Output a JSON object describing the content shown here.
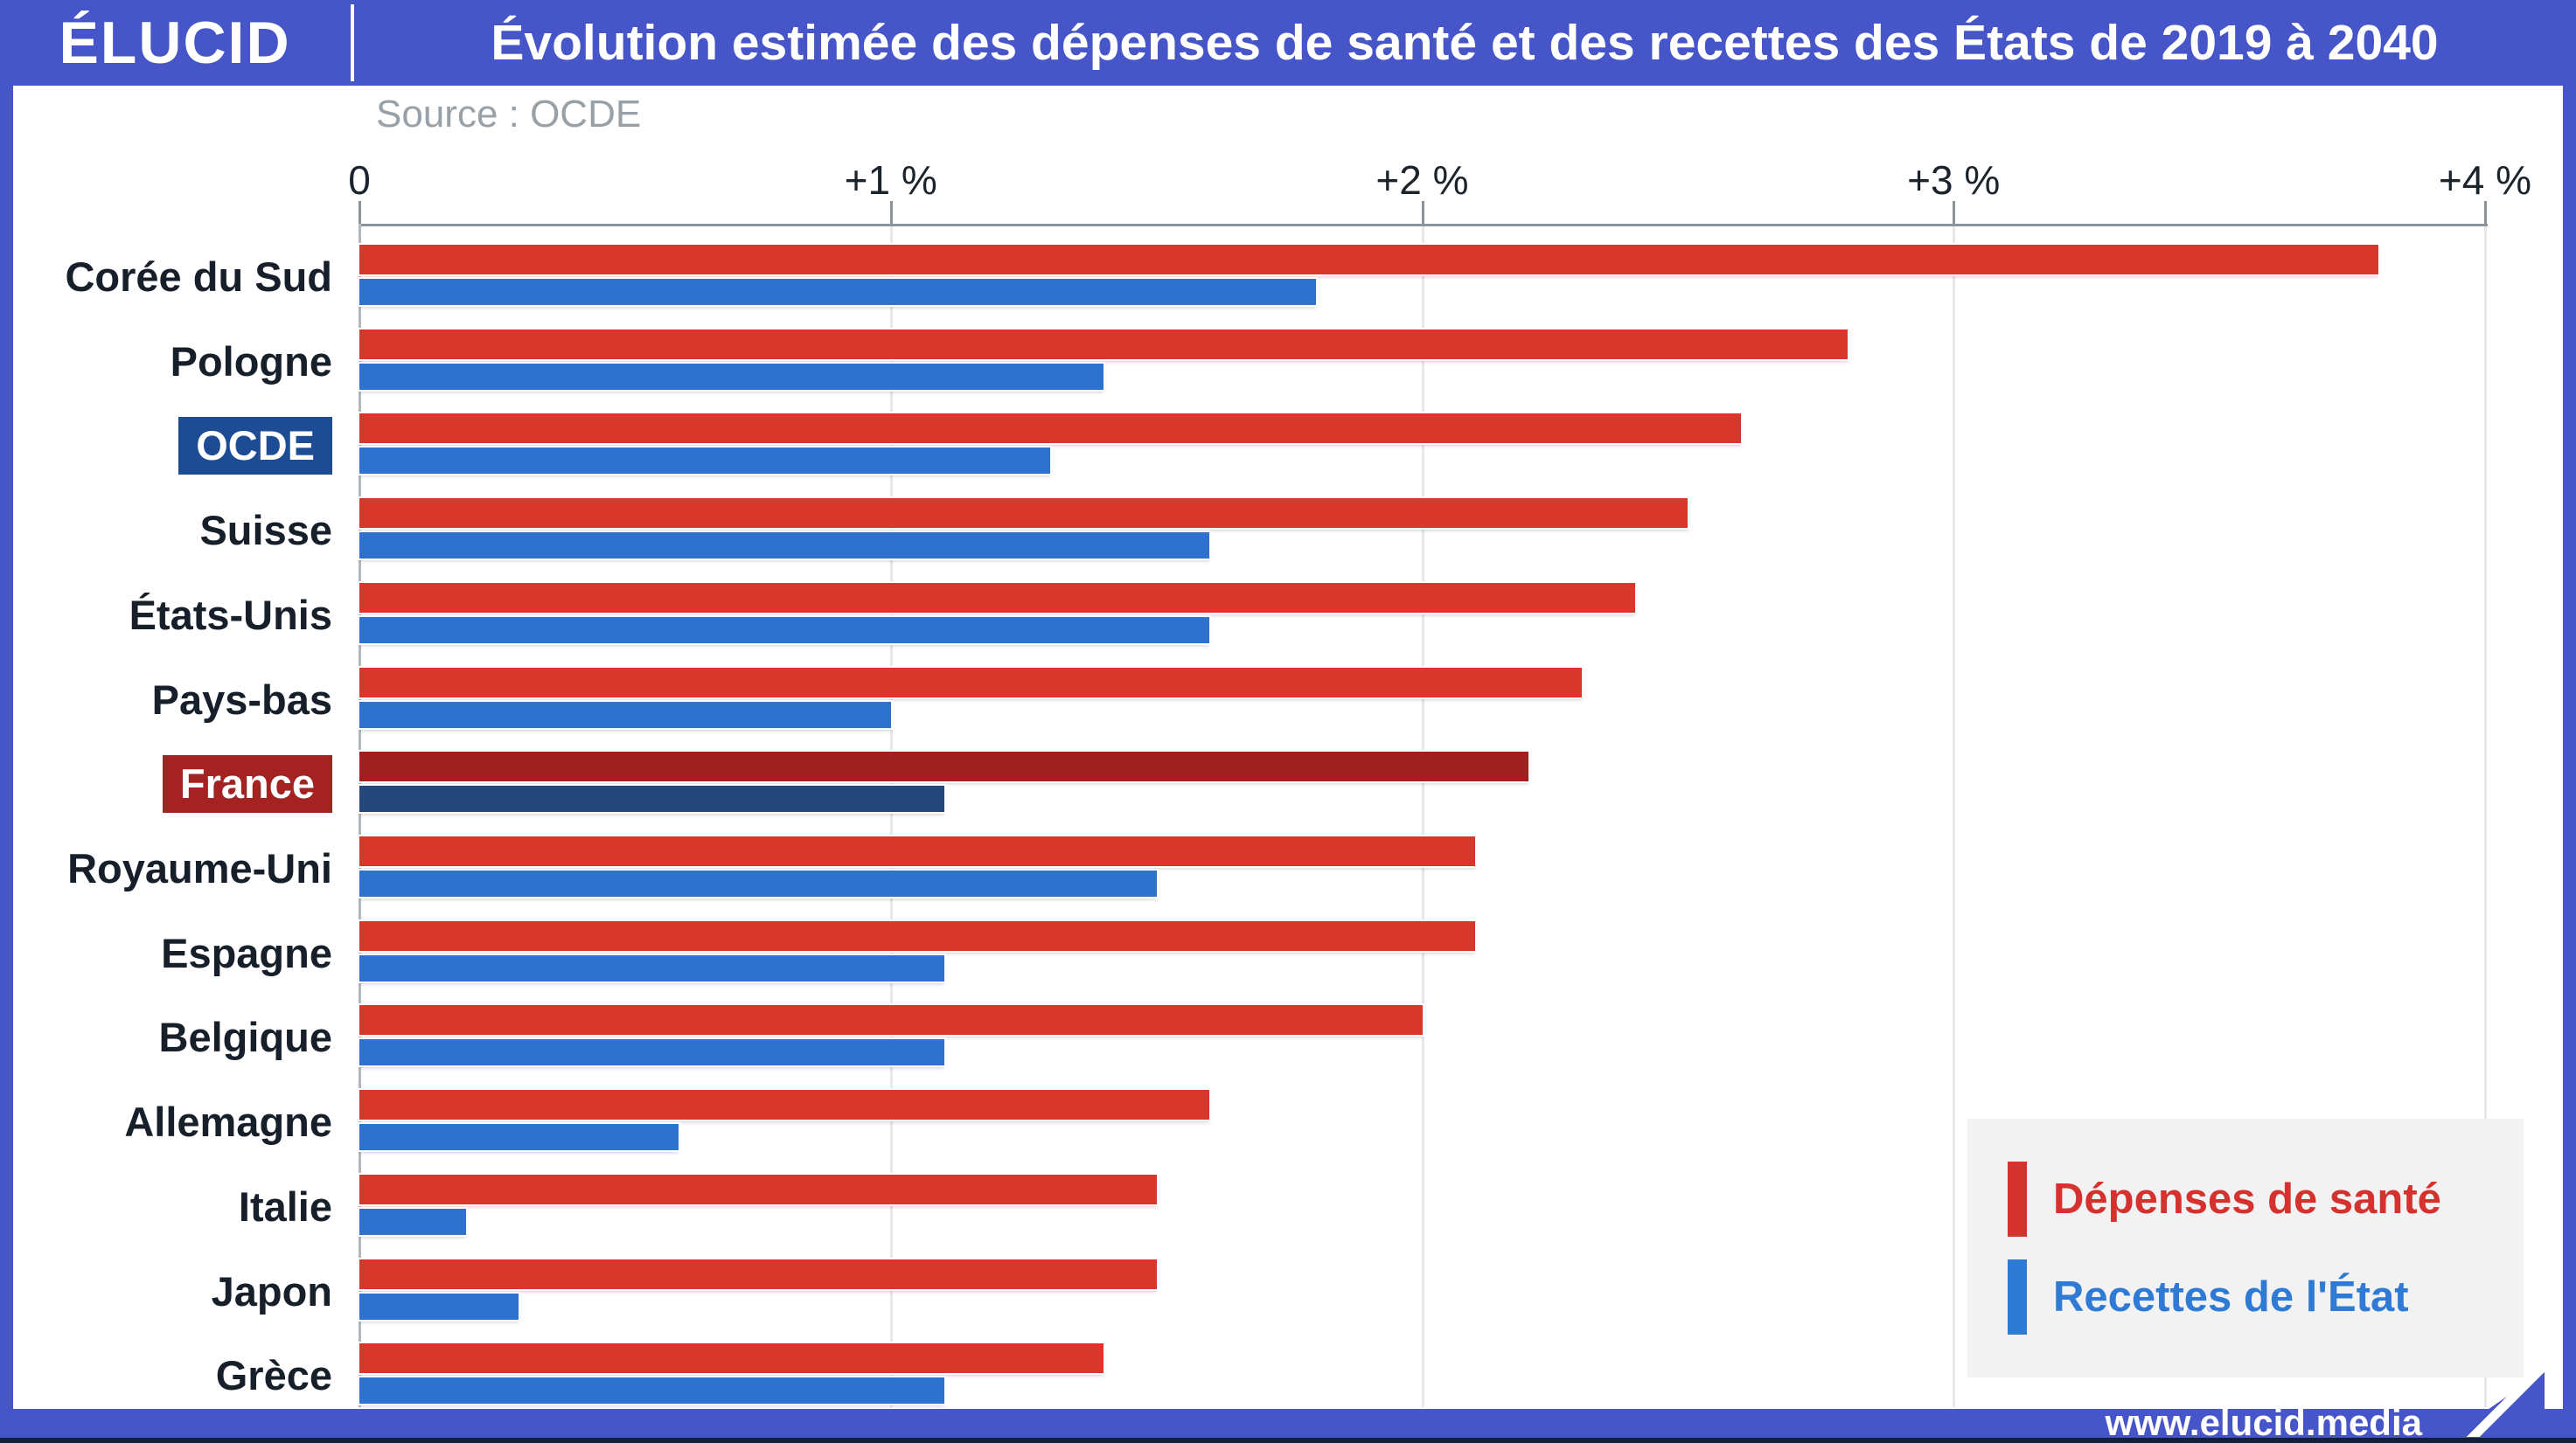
{
  "header": {
    "logo": "ÉLUCID",
    "title": "Évolution estimée des dépenses de santé et des recettes des États de 2019 à 2040"
  },
  "chart": {
    "source": "Source : OCDE"
  },
  "chart_data": {
    "type": "bar",
    "orientation": "horizontal",
    "title": "Évolution estimée des dépenses de santé et des recettes des États de 2019 à 2040",
    "source": "Source : OCDE",
    "categories": [
      "Corée du Sud",
      "Pologne",
      "OCDE",
      "Suisse",
      "États-Unis",
      "Pays-bas",
      "France",
      "Royaume-Uni",
      "Espagne",
      "Belgique",
      "Allemagne",
      "Italie",
      "Japon",
      "Grèce"
    ],
    "series": [
      {
        "name": "Dépenses de santé",
        "color": "#d9362c",
        "values": [
          3.8,
          2.8,
          2.6,
          2.5,
          2.4,
          2.3,
          2.2,
          2.1,
          2.1,
          2.0,
          1.6,
          1.5,
          1.5,
          1.4
        ]
      },
      {
        "name": "Recettes de l'État",
        "color": "#2e72cf",
        "values": [
          1.8,
          1.4,
          1.3,
          1.6,
          1.6,
          1.0,
          1.1,
          1.5,
          1.1,
          1.1,
          0.6,
          0.2,
          0.3,
          1.1
        ]
      }
    ],
    "highlights": {
      "OCDE": {
        "label_bg": "#1d4b94",
        "label_color": "#ffffff"
      },
      "France": {
        "label_bg": "#a42222",
        "label_color": "#ffffff",
        "bar_colors": [
          "#a02020",
          "#24477c"
        ]
      }
    },
    "x_ticks": [
      {
        "value": 0,
        "label": "0"
      },
      {
        "value": 1,
        "label": "+1 %"
      },
      {
        "value": 2,
        "label": "+2 %"
      },
      {
        "value": 3,
        "label": "+3 %"
      },
      {
        "value": 4,
        "label": "+4 %"
      }
    ],
    "xlim": [
      0,
      4
    ],
    "grid": "vertical",
    "legend_position": "bottom-right"
  },
  "legend": {
    "items": [
      {
        "label": "Dépenses de santé",
        "color": "#d5312e"
      },
      {
        "label": "Recettes de l'État",
        "color": "#2e7ad4"
      }
    ]
  },
  "footer": {
    "url": "www.elucid.media"
  }
}
